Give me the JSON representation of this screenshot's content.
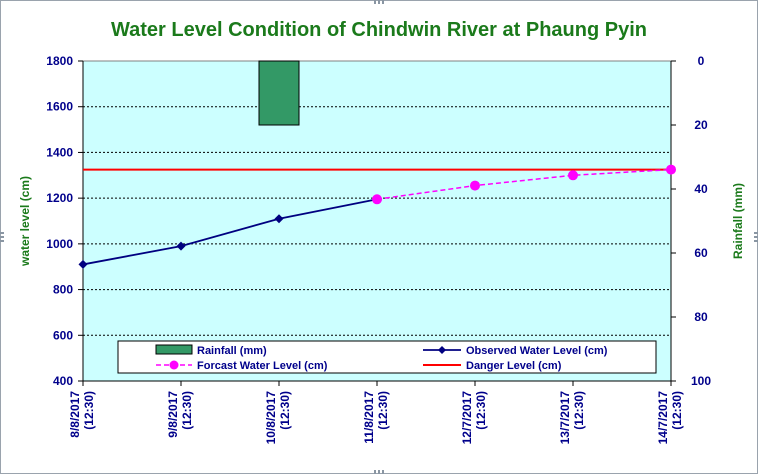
{
  "chart_data": {
    "type": "line",
    "title": "Water Level Condition of Chindwin River at Phaung Pyin",
    "ylabel": "water level (cm)",
    "y2label": "Rainfall (mm)",
    "ylim": [
      400,
      1800
    ],
    "yticks": [
      400,
      600,
      800,
      1000,
      1200,
      1400,
      1600,
      1800
    ],
    "y2lim": [
      0,
      100
    ],
    "y2ticks": [
      0,
      20,
      40,
      60,
      80,
      100
    ],
    "y2_inverted": true,
    "grid": true,
    "legend_position": "bottom",
    "categories": [
      [
        "8/8/2017",
        "(12:30)"
      ],
      [
        "9/8/2017",
        "(12:30)"
      ],
      [
        "10/8/2017",
        "(12:30)"
      ],
      [
        "11/8/2017",
        "(12:30)"
      ],
      [
        "12/7/2017",
        "(12:30)"
      ],
      [
        "13/7/2017",
        "(12:30)"
      ],
      [
        "14/7/2017",
        "(12:30)"
      ]
    ],
    "series": [
      {
        "name": "Rainfall (mm)",
        "type": "bar",
        "axis": "right",
        "color": "#339966",
        "values": [
          null,
          null,
          20,
          null,
          null,
          null,
          null
        ]
      },
      {
        "name": "Observed Water Level (cm)",
        "type": "line",
        "color": "#000080",
        "marker": "diamond",
        "values": [
          910,
          990,
          1110,
          1195,
          null,
          null,
          null
        ]
      },
      {
        "name": "Forcast Water Level (cm)",
        "type": "line",
        "dashed": true,
        "color": "#ff00ff",
        "marker": "circle",
        "values": [
          null,
          null,
          null,
          1195,
          1255,
          1300,
          1325
        ]
      },
      {
        "name": "Danger Level (cm)",
        "type": "line",
        "color": "#ff0000",
        "values": [
          1325,
          1325,
          1325,
          1325,
          1325,
          1325,
          1325
        ]
      }
    ],
    "plot_background": "#ccffff"
  }
}
